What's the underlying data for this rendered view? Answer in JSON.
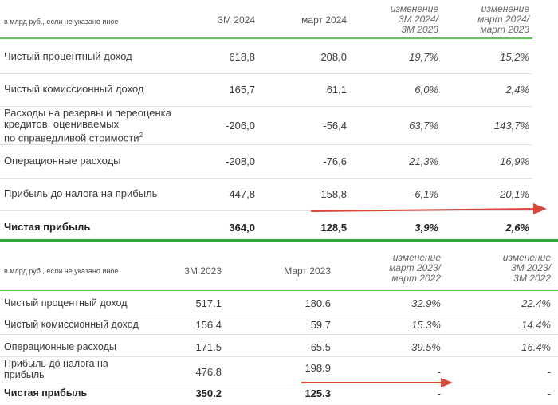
{
  "table1": {
    "header": {
      "unit_note": "в млрд руб., если не указано иное",
      "col1": "3M 2024",
      "col2": "март 2024",
      "col3": [
        "изменение",
        "3M 2024/",
        "3M 2023"
      ],
      "col4": [
        "изменение",
        "март 2024/",
        "март 2023"
      ]
    },
    "rows": [
      {
        "label": [
          "Чистый процентный доход"
        ],
        "v1": "618,8",
        "v2": "208,0",
        "c1": "19,7%",
        "c2": "15,2%"
      },
      {
        "label": [
          "Чистый комиссионный доход"
        ],
        "v1": "165,7",
        "v2": "61,1",
        "c1": "6,0%",
        "c2": "2,4%"
      },
      {
        "label": [
          "Расходы на резервы и переоценка",
          "кредитов, оцениваемых",
          "по справедливой стоимости"
        ],
        "footnote": "2",
        "v1": "-206,0",
        "v2": "-56,4",
        "c1": "63,7%",
        "c2": "143,7%"
      },
      {
        "label": [
          "Операционные расходы"
        ],
        "v1": "-208,0",
        "v2": "-76,6",
        "c1": "21,3%",
        "c2": "16,9%"
      },
      {
        "label": [
          "Прибыль до налога на прибыль"
        ],
        "v1": "447,8",
        "v2": "158,8",
        "c1": "-6,1%",
        "c2": "-20,1%"
      },
      {
        "label": [
          "Чистая прибыль"
        ],
        "v1": "364,0",
        "v2": "128,5",
        "c1": "3,9%",
        "c2": "2,6%"
      }
    ]
  },
  "table2": {
    "header": {
      "unit_note": "в млрд руб., если не указано иное",
      "col1": "3M 2023",
      "col2": "Март 2023",
      "col3": [
        "изменение",
        "март 2023/",
        "март 2022"
      ],
      "col4": [
        "изменение",
        "3M 2023/",
        "3M 2022"
      ]
    },
    "rows": [
      {
        "label": [
          "Чистый процентный доход"
        ],
        "v1": "517.1",
        "v2": "180.6",
        "c1": "32.9%",
        "c2": "22.4%"
      },
      {
        "label": [
          "Чистый комиссионный доход"
        ],
        "v1": "156.4",
        "v2": "59.7",
        "c1": "15.3%",
        "c2": "14.4%"
      },
      {
        "label": [
          "Операционные расходы"
        ],
        "v1": "-171.5",
        "v2": "-65.5",
        "c1": "39.5%",
        "c2": "16.4%"
      },
      {
        "label": [
          "Прибыль до налога на",
          "прибыль"
        ],
        "v1": "476.8",
        "v2": "198.9",
        "c1": "-",
        "c2": "-"
      },
      {
        "label": [
          "Чистая прибыль"
        ],
        "v1": "350.2",
        "v2": "125.3",
        "c1": "-",
        "c2": "-"
      }
    ]
  },
  "colors": {
    "green_line": "#5cc84f",
    "separator": "#2fa63a",
    "arrow": "#d9463a"
  }
}
